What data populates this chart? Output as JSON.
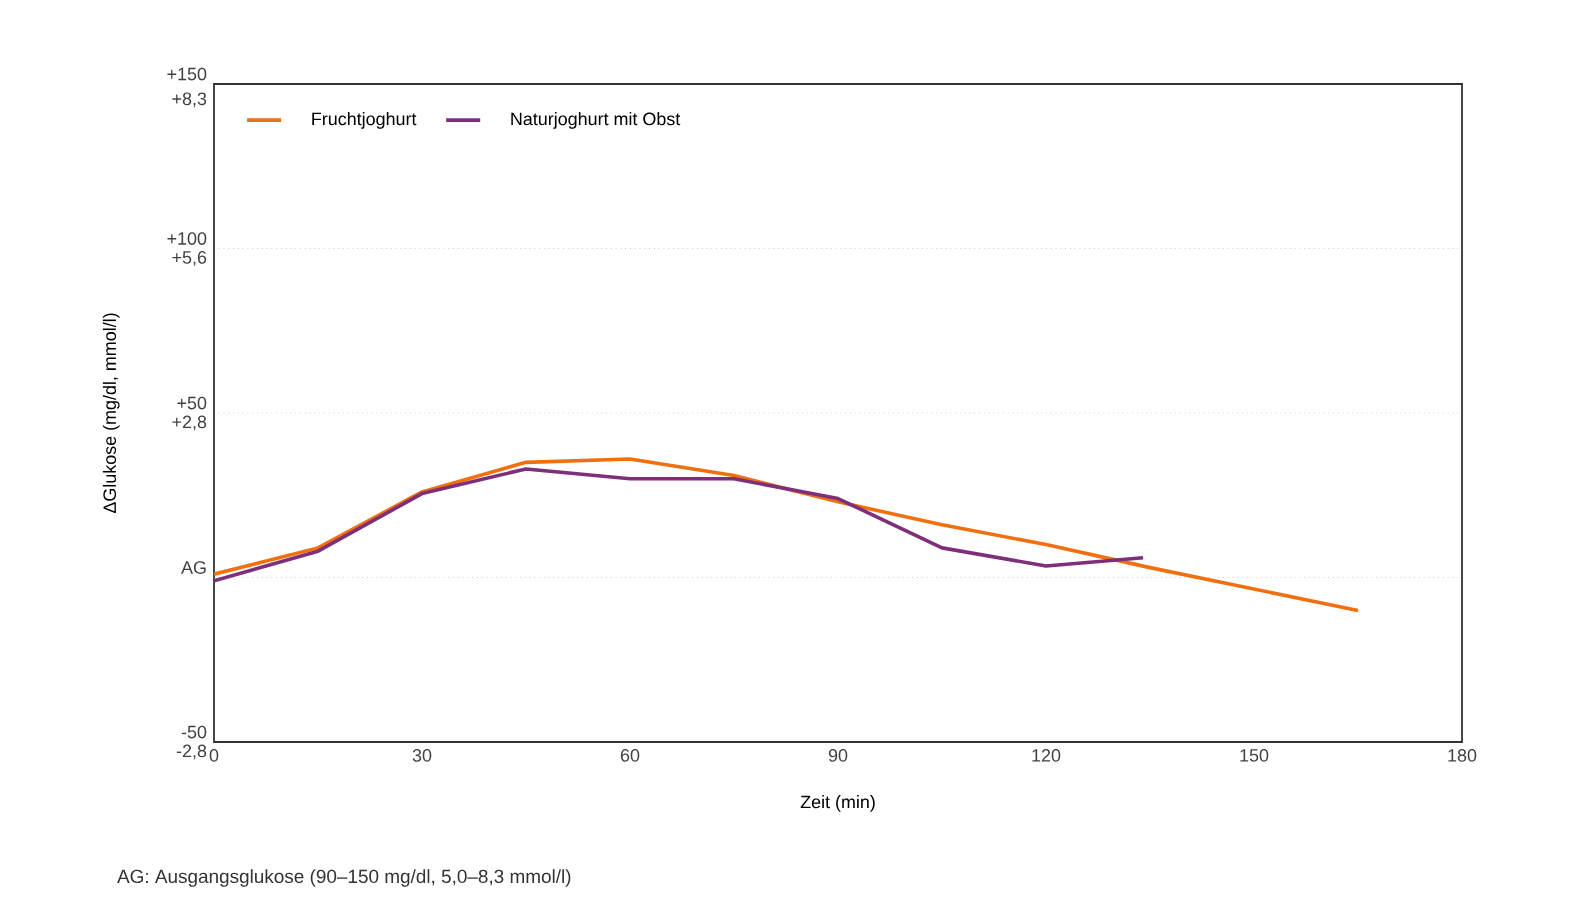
{
  "chart_data": {
    "type": "line",
    "xlabel": "Zeit (min)",
    "ylabel": "ΔGlukose (mg/dl, mmol/l)",
    "xlim": [
      0,
      180
    ],
    "xticks": [
      0,
      30,
      60,
      90,
      120,
      150,
      180
    ],
    "ylim": [
      -50,
      150
    ],
    "yticks": [
      {
        "value": -50,
        "label": "-50"
      },
      {
        "value": 0,
        "label": "AG"
      },
      {
        "value": 50,
        "label": "+50"
      },
      {
        "value": 100,
        "label": "+100"
      },
      {
        "value": 150,
        "label": "+150"
      }
    ],
    "y2lim": [
      -2.8,
      8.4
    ],
    "y2ticks": [
      {
        "value": -2.8,
        "label": "-2,8"
      },
      {
        "value": 2.8,
        "label": "+2,8"
      },
      {
        "value": 5.6,
        "label": "+5,6"
      },
      {
        "value": 8.3,
        "label": "+8,3"
      }
    ],
    "grid": "y",
    "legend": "top left",
    "line_style": "solid",
    "marker": "none",
    "series": [
      {
        "name": "Fruchtjoghurt",
        "color": "#f07010",
        "x": [
          0,
          15,
          30,
          45,
          60,
          75,
          90,
          105,
          120,
          135,
          165
        ],
        "values": [
          1,
          9,
          26,
          35,
          36,
          31,
          23,
          16,
          10,
          3,
          -10
        ]
      },
      {
        "name": "Naturjoghurt mit Obst",
        "color": "#7e2f7a",
        "x": [
          0,
          15,
          30,
          45,
          60,
          75,
          90,
          105,
          120,
          134
        ],
        "values": [
          -1,
          8,
          25.5,
          33,
          30,
          30,
          24,
          9,
          3.5,
          6
        ]
      }
    ],
    "annotations": [
      "AG: Ausgangsglukose (90–150 mg/dl, 5,0–8,3 mmol/l)"
    ]
  }
}
